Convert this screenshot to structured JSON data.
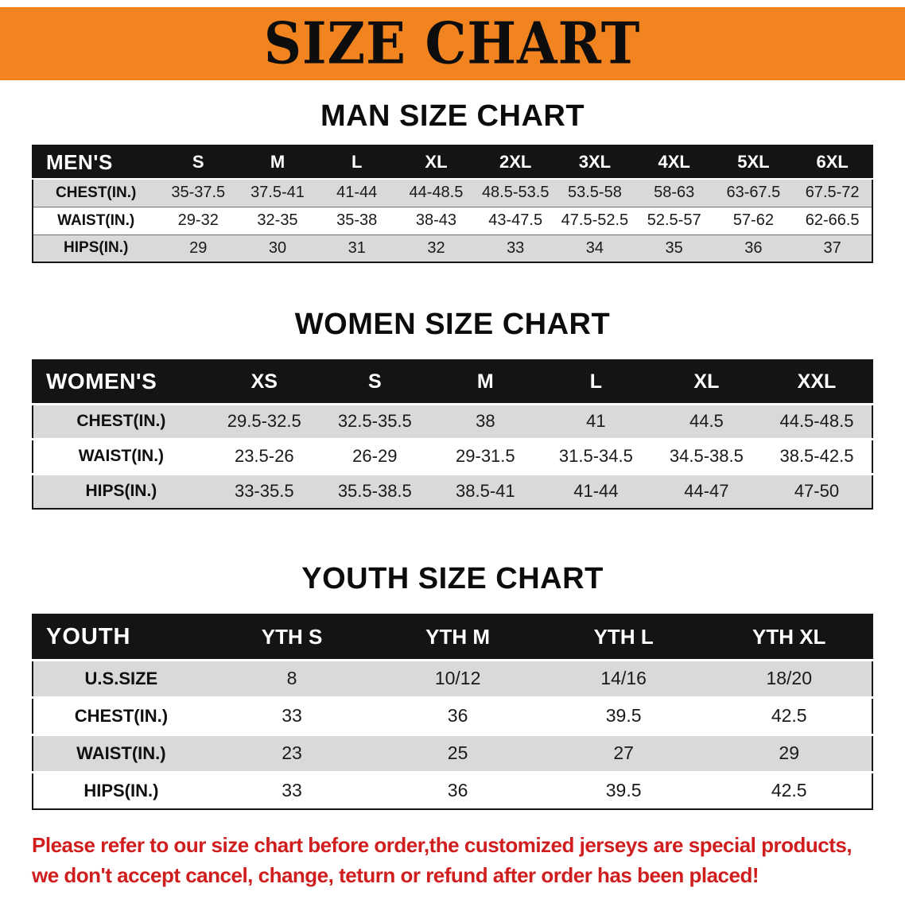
{
  "banner": {
    "title": "SIZE CHART",
    "bg_color": "#f28420"
  },
  "sections": [
    {
      "id": "men",
      "heading": "MAN SIZE CHART",
      "corner_label": "MEN'S",
      "columns": [
        "S",
        "M",
        "L",
        "XL",
        "2XL",
        "3XL",
        "4XL",
        "5XL",
        "6XL"
      ],
      "rows": [
        {
          "label": "CHEST(IN.)",
          "values": [
            "35-37.5",
            "37.5-41",
            "41-44",
            "44-48.5",
            "48.5-53.5",
            "53.5-58",
            "58-63",
            "63-67.5",
            "67.5-72"
          ]
        },
        {
          "label": "WAIST(IN.)",
          "values": [
            "29-32",
            "32-35",
            "35-38",
            "38-43",
            "43-47.5",
            "47.5-52.5",
            "52.5-57",
            "57-62",
            "62-66.5"
          ]
        },
        {
          "label": "HIPS(IN.)",
          "values": [
            "29",
            "30",
            "31",
            "32",
            "33",
            "34",
            "35",
            "36",
            "37"
          ]
        }
      ]
    },
    {
      "id": "women",
      "heading": "WOMEN SIZE CHART",
      "corner_label": "WOMEN'S",
      "columns": [
        "XS",
        "S",
        "M",
        "L",
        "XL",
        "XXL"
      ],
      "rows": [
        {
          "label": "CHEST(IN.)",
          "values": [
            "29.5-32.5",
            "32.5-35.5",
            "38",
            "41",
            "44.5",
            "44.5-48.5"
          ]
        },
        {
          "label": "WAIST(IN.)",
          "values": [
            "23.5-26",
            "26-29",
            "29-31.5",
            "31.5-34.5",
            "34.5-38.5",
            "38.5-42.5"
          ]
        },
        {
          "label": "HIPS(IN.)",
          "values": [
            "33-35.5",
            "35.5-38.5",
            "38.5-41",
            "41-44",
            "44-47",
            "47-50"
          ]
        }
      ]
    },
    {
      "id": "youth",
      "heading": "YOUTH SIZE CHART",
      "corner_label": "YOUTH",
      "columns": [
        "YTH S",
        "YTH M",
        "YTH L",
        "YTH XL"
      ],
      "rows": [
        {
          "label": "U.S.SIZE",
          "values": [
            "8",
            "10/12",
            "14/16",
            "18/20"
          ]
        },
        {
          "label": "CHEST(IN.)",
          "values": [
            "33",
            "36",
            "39.5",
            "42.5"
          ]
        },
        {
          "label": "WAIST(IN.)",
          "values": [
            "23",
            "25",
            "27",
            "29"
          ]
        },
        {
          "label": "HIPS(IN.)",
          "values": [
            "33",
            "36",
            "39.5",
            "42.5"
          ]
        }
      ]
    }
  ],
  "disclaimer": {
    "line1": "Please refer to our size chart before order,the customized jerseys are special products,",
    "line2": "we don't accept cancel, change, teturn or refund after order has been placed!",
    "color": "#d01e1e"
  }
}
